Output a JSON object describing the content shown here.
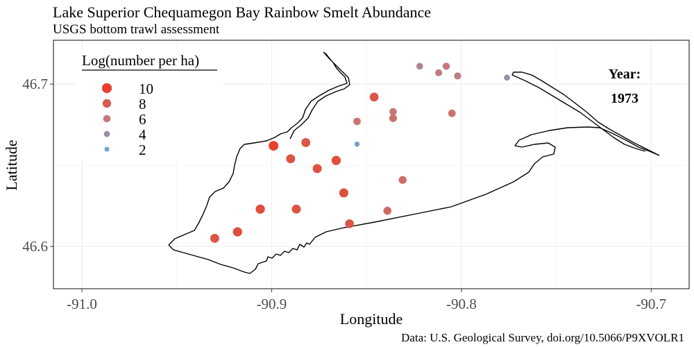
{
  "title": "Lake Superior Chequamegon Bay Rainbow Smelt Abundance",
  "subtitle": "USGS bottom trawl assessment",
  "caption": "Data: U.S. Geological Survey, doi.org/10.5066/P9XVOLR1",
  "colors": {
    "high": "#e8402a",
    "mid": "#c87878",
    "low": "#6ea4cd",
    "grid": "#ebebeb",
    "border": "#333333"
  },
  "chart_data": {
    "type": "scatter",
    "xlabel": "Longitude",
    "ylabel": "Latitude",
    "xlim": [
      -91.015,
      -90.68
    ],
    "ylim": [
      46.574,
      46.727
    ],
    "x_ticks": [
      -91.0,
      -90.9,
      -90.8,
      -90.7
    ],
    "x_tick_labels": [
      "-91.0",
      "-90.9",
      "-90.8",
      "-90.7"
    ],
    "y_ticks": [
      46.6,
      46.7
    ],
    "y_tick_labels": [
      "46.6",
      "46.7"
    ],
    "grid": true,
    "legend": {
      "title": "Log(number per ha)",
      "placement": "top-left",
      "entries": [
        {
          "label": "10",
          "value": 10
        },
        {
          "label": "8",
          "value": 8
        },
        {
          "label": "6",
          "value": 6
        },
        {
          "label": "4",
          "value": 4
        },
        {
          "label": "2",
          "value": 2
        }
      ]
    },
    "annotation": {
      "label": "Year:",
      "value": "1973"
    },
    "points": [
      {
        "lon": -90.93,
        "lat": 46.605,
        "log_n": 8.6
      },
      {
        "lon": -90.918,
        "lat": 46.609,
        "log_n": 9.0
      },
      {
        "lon": -90.906,
        "lat": 46.623,
        "log_n": 9.0
      },
      {
        "lon": -90.899,
        "lat": 46.662,
        "log_n": 9.8
      },
      {
        "lon": -90.89,
        "lat": 46.654,
        "log_n": 8.6
      },
      {
        "lon": -90.887,
        "lat": 46.623,
        "log_n": 8.6
      },
      {
        "lon": -90.882,
        "lat": 46.664,
        "log_n": 8.5
      },
      {
        "lon": -90.876,
        "lat": 46.648,
        "log_n": 8.7
      },
      {
        "lon": -90.866,
        "lat": 46.653,
        "log_n": 9.0
      },
      {
        "lon": -90.862,
        "lat": 46.633,
        "log_n": 8.8
      },
      {
        "lon": -90.859,
        "lat": 46.614,
        "log_n": 8.3
      },
      {
        "lon": -90.855,
        "lat": 46.663,
        "log_n": 2.5
      },
      {
        "lon": -90.855,
        "lat": 46.677,
        "log_n": 6.2
      },
      {
        "lon": -90.846,
        "lat": 46.692,
        "log_n": 8.4
      },
      {
        "lon": -90.839,
        "lat": 46.622,
        "log_n": 7.0
      },
      {
        "lon": -90.836,
        "lat": 46.679,
        "log_n": 6.5
      },
      {
        "lon": -90.836,
        "lat": 46.683,
        "log_n": 6.0
      },
      {
        "lon": -90.831,
        "lat": 46.641,
        "log_n": 6.8
      },
      {
        "lon": -90.822,
        "lat": 46.711,
        "log_n": 5.0
      },
      {
        "lon": -90.812,
        "lat": 46.707,
        "log_n": 5.5
      },
      {
        "lon": -90.808,
        "lat": 46.711,
        "log_n": 5.8
      },
      {
        "lon": -90.805,
        "lat": 46.682,
        "log_n": 6.3
      },
      {
        "lon": -90.802,
        "lat": 46.705,
        "log_n": 5.5
      },
      {
        "lon": -90.776,
        "lat": 46.704,
        "log_n": 3.8
      }
    ]
  }
}
